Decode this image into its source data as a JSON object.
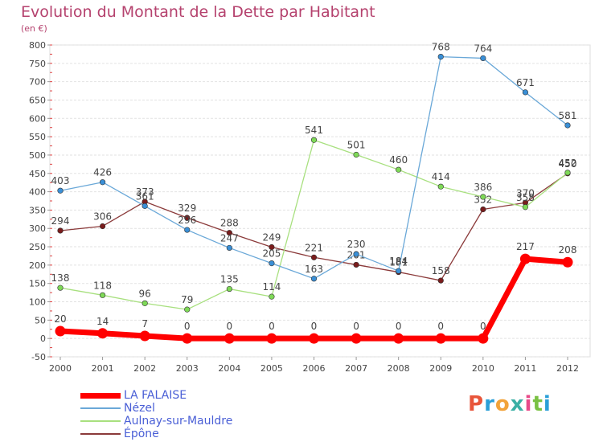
{
  "title": "Evolution du Montant de la Dette par Habitant",
  "subtitle": "(en €)",
  "logo": {
    "text": "Proxiti",
    "colors": [
      "#e8553a",
      "#2a9fd8",
      "#f2a33a",
      "#3bb0a5",
      "#e84b8a",
      "#7ac143",
      "#2a9fd8"
    ]
  },
  "chart_data": {
    "type": "line",
    "title": "Evolution du Montant de la Dette par Habitant",
    "ylabel": "(en €)",
    "x": [
      "2000",
      "2001",
      "2002",
      "2003",
      "2004",
      "2005",
      "2006",
      "2007",
      "2008",
      "2009",
      "2010",
      "2011",
      "2012"
    ],
    "ylim": [
      -50,
      800
    ],
    "yticks": [
      -50,
      0,
      50,
      100,
      150,
      200,
      250,
      300,
      350,
      400,
      450,
      500,
      550,
      600,
      650,
      700,
      750,
      800
    ],
    "grid": "horizontal",
    "legend": "bottom-left",
    "series": [
      {
        "name": "Épône",
        "color": "#7a1c1c",
        "stroke": "#8b3a3a",
        "values": [
          294,
          306,
          373,
          329,
          288,
          249,
          221,
          201,
          181,
          158,
          352,
          370,
          450
        ]
      },
      {
        "name": "Aulnay-sur-Mauldre",
        "color": "#7ed957",
        "stroke": "#a8e07f",
        "values": [
          138,
          118,
          96,
          79,
          135,
          114,
          541,
          501,
          460,
          414,
          386,
          358,
          452
        ]
      },
      {
        "name": "Nézel",
        "color": "#3a8fd6",
        "stroke": "#6aa8d8",
        "values": [
          403,
          426,
          361,
          296,
          247,
          205,
          163,
          230,
          184,
          768,
          764,
          671,
          581
        ]
      },
      {
        "name": "LA FALAISE",
        "color": "#ff0000",
        "stroke": "#ff0000",
        "values": [
          20,
          14,
          7,
          0,
          0,
          0,
          0,
          0,
          0,
          0,
          0,
          217,
          208
        ]
      }
    ],
    "legend_order": [
      "LA FALAISE",
      "Nézel",
      "Aulnay-sur-Mauldre",
      "Épône"
    ]
  }
}
